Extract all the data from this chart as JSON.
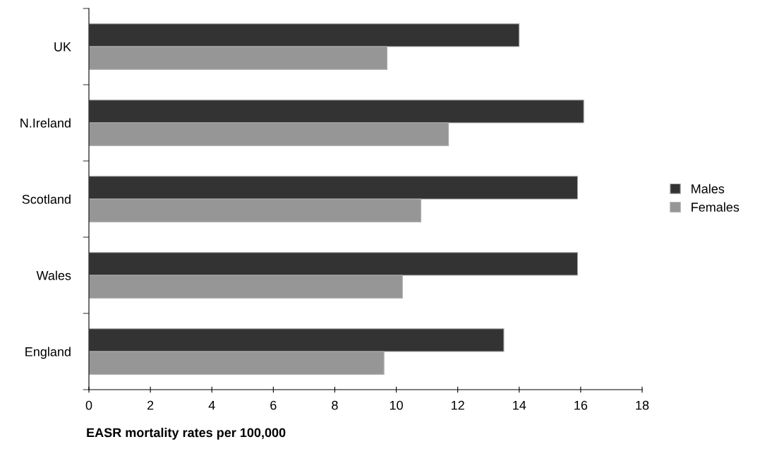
{
  "chart_data": {
    "type": "bar",
    "orientation": "horizontal",
    "xlabel": "EASR mortality rates per 100,000",
    "categories": [
      "UK",
      "N.Ireland",
      "Scotland",
      "Wales",
      "England"
    ],
    "series": [
      {
        "name": "Males",
        "color": "#333333",
        "values": [
          14.0,
          16.1,
          15.9,
          15.9,
          13.5
        ]
      },
      {
        "name": "Females",
        "color": "#969696",
        "values": [
          9.7,
          11.7,
          10.8,
          10.2,
          9.6
        ]
      }
    ],
    "xlim": [
      0,
      18
    ],
    "xticks": [
      0,
      2,
      4,
      6,
      8,
      10,
      12,
      14,
      16,
      18
    ],
    "grid": false,
    "legend": "right"
  }
}
